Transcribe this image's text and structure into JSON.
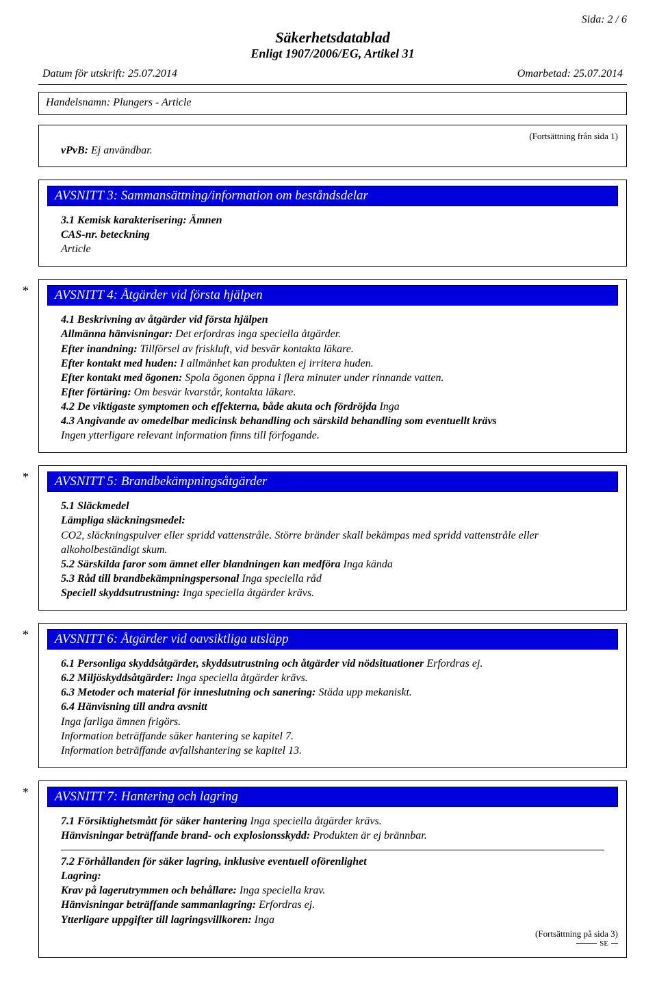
{
  "page_number_label": "Sida: 2 / 6",
  "doc_title": "Säkerhetsdatablad",
  "doc_subtitle": "Enligt 1907/2006/EG, Artikel 31",
  "print_date": "Datum för utskrift: 25.07.2014",
  "revised_date": "Omarbetad: 25.07.2014",
  "trade_name_label": "Handelsnamn: Plungers - Article",
  "continuation_from": "(Fortsättning från sida 1)",
  "vpvb": {
    "label": "vPvB:",
    "value": "Ej användbar."
  },
  "section3": {
    "title": "AVSNITT 3: Sammansättning/information om beståndsdelar",
    "line1_label": "3.1 Kemisk karakterisering: Ämnen",
    "line2_label": "CAS-nr. beteckning",
    "line3_value": "Article"
  },
  "section4": {
    "title": "AVSNITT 4: Åtgärder vid första hjälpen",
    "l41_label": "4.1 Beskrivning av åtgärder vid första hjälpen",
    "general_label": "Allmänna hänvisningar:",
    "general_value": "Det erfordras inga speciella åtgärder.",
    "inhalation_label": "Efter inandning:",
    "inhalation_value": "Tillförsel av friskluft, vid besvär kontakta läkare.",
    "skin_label": "Efter kontakt med huden:",
    "skin_value": "I allmänhet kan produkten ej irritera huden.",
    "eyes_label": "Efter kontakt med ögonen:",
    "eyes_value": "Spola ögonen öppna i flera minuter under rinnande vatten.",
    "ingestion_label": "Efter förtäring:",
    "ingestion_value": "Om besvär kvarstår, kontakta läkare.",
    "l42_label": "4.2 De viktigaste symptomen och effekterna, både akuta och fördröjda",
    "l42_value": "Inga",
    "l43_label": "4.3 Angivande av omedelbar medicinsk behandling och särskild behandling som eventuellt krävs",
    "l43_value": "Ingen ytterligare relevant information finns till förfogande."
  },
  "section5": {
    "title": "AVSNITT 5: Brandbekämpningsåtgärder",
    "l51_label": "5.1 Släckmedel",
    "suitable_label": "Lämpliga släckningsmedel:",
    "suitable_value": "CO2, släckningspulver eller spridd vattenstråle. Större bränder skall bekämpas med spridd vattenstråle eller alkoholbeständigt skum.",
    "l52_label": "5.2 Särskilda faror som ämnet eller blandningen kan medföra",
    "l52_value": "Inga kända",
    "l53_label": "5.3 Råd till brandbekämpningspersonal",
    "l53_value": "Inga speciella råd",
    "equip_label": "Speciell skyddsutrustning:",
    "equip_value": "Inga speciella åtgärder krävs."
  },
  "section6": {
    "title": "AVSNITT 6: Åtgärder vid oavsiktliga utsläpp",
    "l61_label": "6.1 Personliga skyddsåtgärder, skyddsutrustning och åtgärder vid nödsituationer",
    "l61_value": "Erfordras ej.",
    "l62_label": "6.2 Miljöskyddsåtgärder:",
    "l62_value": "Inga speciella åtgärder krävs.",
    "l63_label": "6.3 Metoder och material för inneslutning och sanering:",
    "l63_value": "Städa upp mekaniskt.",
    "l64_label": "6.4 Hänvisning till andra avsnitt",
    "l64_v1": "Inga farliga ämnen frigörs.",
    "l64_v2": "Information beträffande säker hantering se kapitel 7.",
    "l64_v3": "Information beträffande avfallshantering se kapitel 13."
  },
  "section7": {
    "title": "AVSNITT 7: Hantering och lagring",
    "l71_label": "7.1 Försiktighetsmått för säker hantering",
    "l71_value": "Inga speciella åtgärder krävs.",
    "fire_label": "Hänvisningar beträffande brand- och explosionsskydd:",
    "fire_value": "Produkten är ej brännbar.",
    "l72_label": "7.2 Förhållanden för säker lagring, inklusive eventuell oförenlighet",
    "storage_label": "Lagring:",
    "req_label": "Krav på lagerutrymmen och behållare:",
    "req_value": "Inga speciella krav.",
    "together_label": "Hänvisningar beträffande sammanlagring:",
    "together_value": "Erfordras ej.",
    "further_label": "Ytterligare uppgifter till lagringsvillkoren:",
    "further_value": "Inga"
  },
  "continuation_to": "(Fortsättning på sida 3)",
  "se_label": "SE",
  "colors": {
    "header_bg": "#0000dd",
    "header_text": "#ffffff",
    "page_bg": "#ffffff",
    "text": "#000000"
  }
}
